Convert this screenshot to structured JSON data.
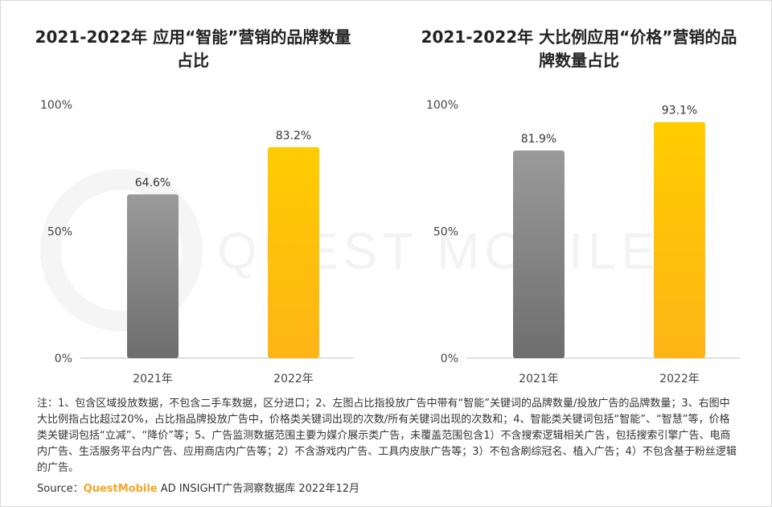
{
  "chart_data": [
    {
      "type": "bar",
      "title": "2021-2022年 应用“智能”营销的品牌数量占比",
      "categories": [
        "2021年",
        "2022年"
      ],
      "values": [
        64.6,
        83.2
      ],
      "value_labels": [
        "64.6%",
        "83.2%"
      ],
      "ylim": [
        0,
        100
      ],
      "yticks": [
        "0%",
        "50%",
        "100%"
      ],
      "xlabel": "",
      "ylabel": "",
      "grid": false,
      "colors": [
        "#8a8a8a",
        "#ffc200"
      ]
    },
    {
      "type": "bar",
      "title": "2021-2022年 大比例应用“价格”营销的品牌数量占比",
      "categories": [
        "2021年",
        "2022年"
      ],
      "values": [
        81.9,
        93.1
      ],
      "value_labels": [
        "81.9%",
        "93.1%"
      ],
      "ylim": [
        0,
        100
      ],
      "yticks": [
        "0%",
        "50%",
        "100%"
      ],
      "xlabel": "",
      "ylabel": "",
      "grid": false,
      "colors": [
        "#8a8a8a",
        "#ffc200"
      ]
    }
  ],
  "note": "注：1、包含区域投放数据，不包含二手车数据，区分进口；2、左图占比指投放广告中带有“智能”关键词的品牌数量/投放广告的品牌数量；3、右图中大比例指占比超过20%，占比指品牌投放广告中，价格类关键词出现的次数/所有关键词出现的次数和；4、智能类关键词包括“智能”、“智慧”等，价格类关键词包括“立减”、“降价”等；5、广告监测数据范围主要为媒介展示类广告，未覆盖范围包含1）不含搜索逻辑相关广告，包括搜索引擎广告、电商内广告、生活服务平台内广告、应用商店内广告等；2）不含游戏内广告、工具内皮肤广告等；3）不包含刷综冠名、植入广告；4）不包含基于粉丝逻辑的广告。",
  "source": {
    "prefix": "Source：",
    "brand": "QuestMobile",
    "suffix": " AD INSIGHT广告洞察数据库 2022年12月"
  },
  "watermark": "QUEST MOBILE"
}
